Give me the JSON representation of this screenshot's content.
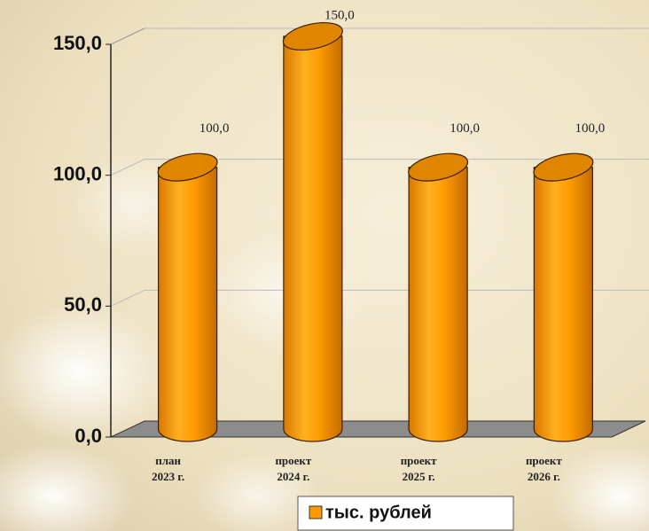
{
  "chart_data": {
    "type": "bar3d-cylinder",
    "categories": [
      [
        "план",
        "2023 г."
      ],
      [
        "проект",
        "2024 г."
      ],
      [
        "проект",
        "2025 г."
      ],
      [
        "проект",
        "2026 г."
      ]
    ],
    "series": [
      {
        "name": "тыс. рублей",
        "color": "#ff9900",
        "values": [
          100,
          150,
          100,
          100
        ],
        "value_labels": [
          "100,0",
          "150,0",
          "100,0",
          "100,0"
        ]
      }
    ],
    "ylim": [
      0,
      150
    ],
    "yticks": [
      {
        "value": 0,
        "label": "0,0"
      },
      {
        "value": 50,
        "label": "50,0"
      },
      {
        "value": 100,
        "label": "100,0"
      },
      {
        "value": 150,
        "label": "150,0"
      }
    ],
    "grid": true
  }
}
